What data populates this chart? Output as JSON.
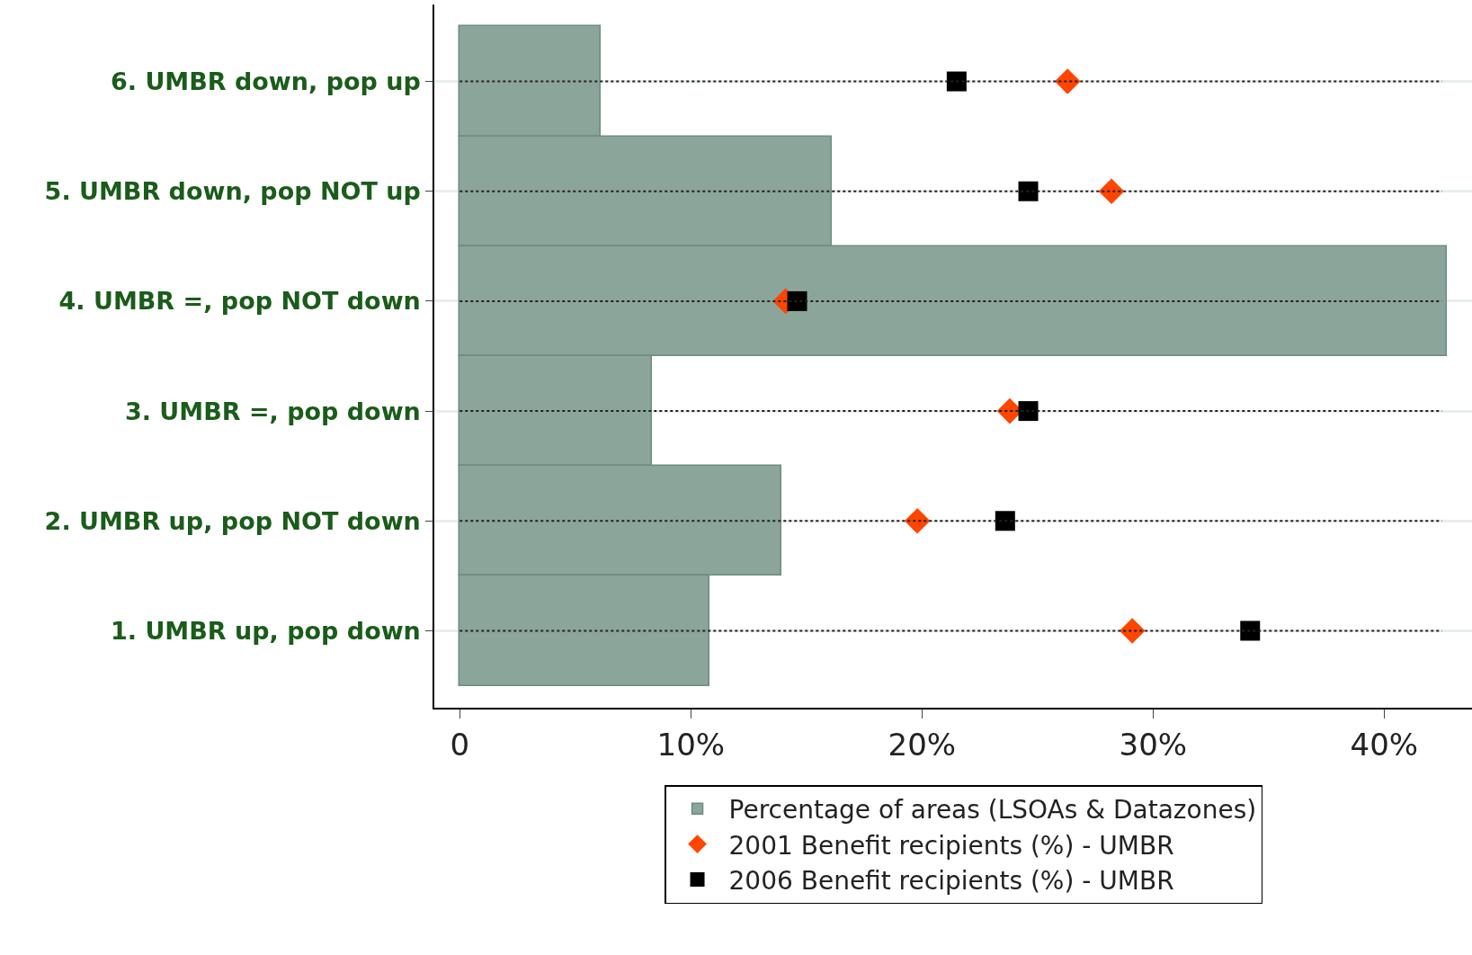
{
  "chart_data": {
    "type": "bar",
    "orientation": "horizontal",
    "categories": [
      "6. UMBR down, pop up",
      "5. UMBR down, pop NOT up",
      "4. UMBR =, pop NOT down",
      "3. UMBR =, pop down",
      "2. UMBR up, pop NOT down",
      "1. UMBR up, pop down"
    ],
    "series": [
      {
        "name": "Percentage of areas (LSOAs & Datazones)",
        "color": "#8ba59a",
        "values": [
          6.1,
          16.1,
          42.7,
          8.3,
          13.9,
          10.8
        ]
      },
      {
        "name": "2001 Benefit recipients (%) - UMBR",
        "type": "scatter",
        "marker": "diamond",
        "color": "#ff4500",
        "values": [
          26.3,
          28.2,
          14.1,
          23.8,
          19.8,
          29.1
        ]
      },
      {
        "name": "2006 Benefit recipients (%) - UMBR",
        "type": "scatter",
        "marker": "square",
        "color": "#000000",
        "values": [
          21.5,
          24.6,
          14.6,
          24.6,
          23.6,
          34.2
        ]
      }
    ],
    "xlim": [
      -1.1,
      43.8
    ],
    "xticks": [
      0,
      {
        "value": 10,
        "label": "10%"
      },
      {
        "value": 20,
        "label": "20%"
      },
      {
        "value": 30,
        "label": "30%"
      },
      {
        "value": 40,
        "label": "40%"
      }
    ],
    "grid": "y",
    "legend": "bottom"
  }
}
